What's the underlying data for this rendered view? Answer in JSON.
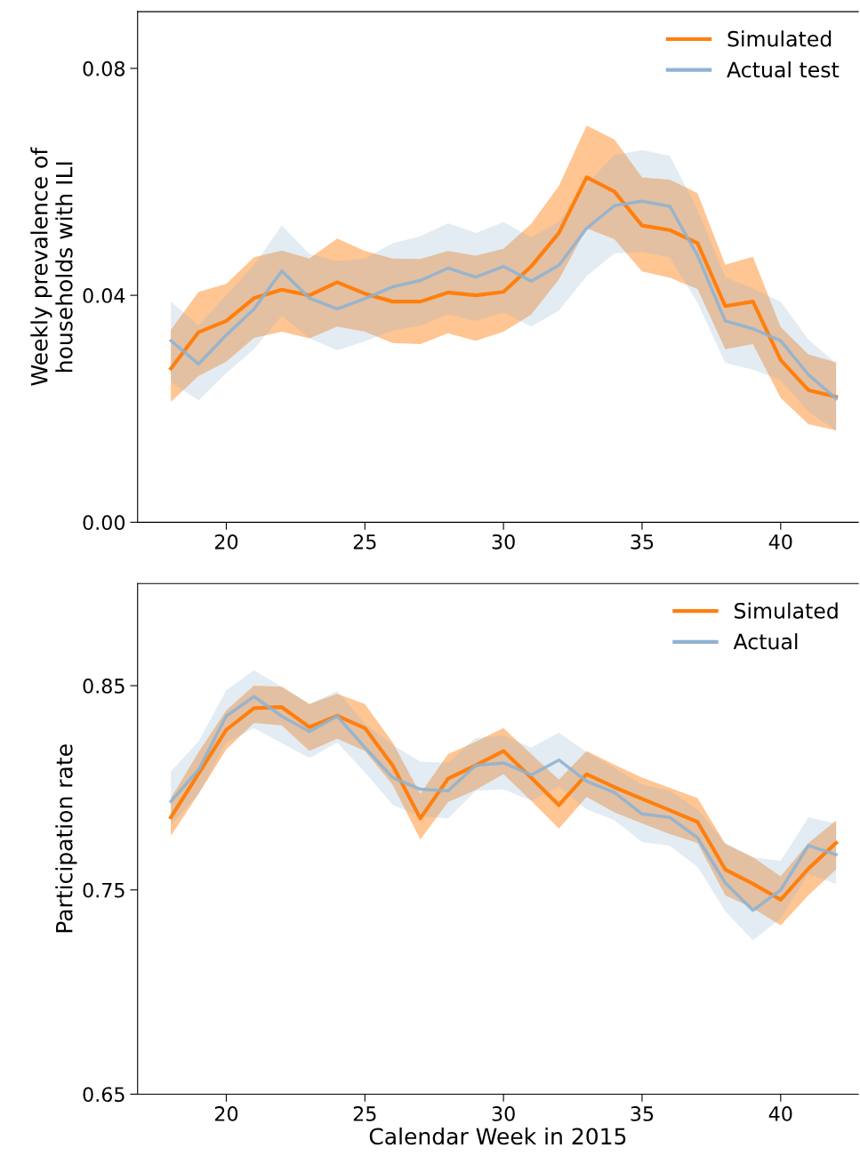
{
  "chart_data": [
    {
      "type": "line",
      "ylabel": "Weekly prevalence of\nhouseholds with ILI",
      "x": [
        18,
        19,
        20,
        21,
        22,
        23,
        24,
        25,
        26,
        27,
        28,
        29,
        30,
        31,
        32,
        33,
        34,
        35,
        36,
        37,
        38,
        39,
        40,
        41,
        42
      ],
      "xlim": [
        16.8,
        42.8
      ],
      "xticks": [
        20,
        25,
        30,
        35,
        40
      ],
      "ylim": [
        0,
        0.09
      ],
      "yticks": [
        {
          "value": 0,
          "label": "0.00"
        },
        0.04,
        0.08
      ],
      "grid": false,
      "legend": "top right",
      "series": [
        {
          "name": "Simulated",
          "color": "#ff7f0e",
          "values": [
            0.0271,
            0.0335,
            0.0355,
            0.0395,
            0.041,
            0.04,
            0.0423,
            0.0403,
            0.0389,
            0.0389,
            0.0405,
            0.04,
            0.0406,
            0.0451,
            0.051,
            0.0608,
            0.0583,
            0.0523,
            0.0515,
            0.0492,
            0.0381,
            0.0389,
            0.0286,
            0.0233,
            0.0221
          ],
          "upper": [
            0.0339,
            0.0406,
            0.042,
            0.0467,
            0.0479,
            0.0465,
            0.05,
            0.0478,
            0.0465,
            0.0464,
            0.0478,
            0.047,
            0.0482,
            0.0526,
            0.0593,
            0.0699,
            0.0675,
            0.0608,
            0.0604,
            0.058,
            0.0454,
            0.0468,
            0.0344,
            0.0296,
            0.0282
          ],
          "lower": [
            0.0212,
            0.0258,
            0.0283,
            0.0325,
            0.0336,
            0.0324,
            0.0345,
            0.0336,
            0.0316,
            0.0314,
            0.0333,
            0.032,
            0.0336,
            0.0366,
            0.0428,
            0.0518,
            0.0499,
            0.0442,
            0.0431,
            0.0411,
            0.0305,
            0.0314,
            0.0219,
            0.0173,
            0.0162
          ]
        },
        {
          "name": "Actual test",
          "color": "#8fb3d1",
          "values": [
            0.032,
            0.0279,
            0.033,
            0.0376,
            0.0443,
            0.0395,
            0.0376,
            0.0394,
            0.0415,
            0.0426,
            0.0448,
            0.0432,
            0.0451,
            0.0425,
            0.0453,
            0.0518,
            0.0558,
            0.0566,
            0.0557,
            0.047,
            0.0355,
            0.0341,
            0.032,
            0.026,
            0.0218
          ],
          "upper": [
            0.0389,
            0.0347,
            0.04,
            0.0453,
            0.0523,
            0.0473,
            0.046,
            0.0465,
            0.0492,
            0.0504,
            0.0527,
            0.051,
            0.0529,
            0.0502,
            0.053,
            0.0596,
            0.0647,
            0.0656,
            0.0646,
            0.0551,
            0.0432,
            0.0412,
            0.0389,
            0.0322,
            0.028
          ],
          "lower": [
            0.0247,
            0.0215,
            0.0263,
            0.0305,
            0.0364,
            0.0324,
            0.0303,
            0.0319,
            0.0338,
            0.0347,
            0.0367,
            0.0355,
            0.037,
            0.0345,
            0.0373,
            0.0434,
            0.0474,
            0.0476,
            0.0467,
            0.0387,
            0.0281,
            0.0269,
            0.0251,
            0.0195,
            0.0162
          ]
        }
      ]
    },
    {
      "type": "line",
      "xlabel": "Calendar Week in 2015",
      "ylabel": "Participation rate",
      "x": [
        18,
        19,
        20,
        21,
        22,
        23,
        24,
        25,
        26,
        27,
        28,
        29,
        30,
        31,
        32,
        33,
        34,
        35,
        36,
        37,
        38,
        39,
        40,
        41,
        42
      ],
      "xlim": [
        16.8,
        42.8
      ],
      "xticks": [
        20,
        25,
        30,
        35,
        40
      ],
      "ylim": [
        0.65,
        0.9
      ],
      "yticks": [
        0.65,
        0.75,
        0.85
      ],
      "grid": false,
      "legend": "top right",
      "series": [
        {
          "name": "Simulated",
          "color": "#ff7f0e",
          "values": [
            0.7855,
            0.807,
            0.8284,
            0.839,
            0.8395,
            0.8297,
            0.8353,
            0.8292,
            0.811,
            0.785,
            0.8045,
            0.811,
            0.818,
            0.805,
            0.7915,
            0.8067,
            0.8003,
            0.7946,
            0.789,
            0.7833,
            0.76,
            0.753,
            0.7452,
            0.7604,
            0.773
          ],
          "upper": [
            0.795,
            0.8175,
            0.838,
            0.85,
            0.8495,
            0.841,
            0.846,
            0.841,
            0.8222,
            0.797,
            0.8165,
            0.8226,
            0.8292,
            0.8165,
            0.804,
            0.818,
            0.8113,
            0.805,
            0.8,
            0.795,
            0.7725,
            0.766,
            0.7566,
            0.773,
            0.784
          ],
          "lower": [
            0.7765,
            0.797,
            0.8188,
            0.8318,
            0.8305,
            0.818,
            0.824,
            0.818,
            0.8015,
            0.7747,
            0.793,
            0.799,
            0.8067,
            0.7937,
            0.78,
            0.7955,
            0.788,
            0.7825,
            0.7773,
            0.773,
            0.7474,
            0.741,
            0.7327,
            0.7474,
            0.76
          ]
        },
        {
          "name": "Actual",
          "color": "#8fb3d1",
          "values": [
            0.7933,
            0.8088,
            0.8351,
            0.8447,
            0.835,
            0.8275,
            0.8351,
            0.8197,
            0.805,
            0.7993,
            0.7985,
            0.811,
            0.8122,
            0.8063,
            0.8136,
            0.8032,
            0.7977,
            0.7872,
            0.7855,
            0.7755,
            0.7535,
            0.74,
            0.75,
            0.7717,
            0.7673
          ],
          "upper": [
            0.808,
            0.8227,
            0.8478,
            0.8575,
            0.8495,
            0.841,
            0.8474,
            0.8314,
            0.821,
            0.8128,
            0.8123,
            0.8244,
            0.8257,
            0.8197,
            0.827,
            0.8175,
            0.8097,
            0.8015,
            0.7985,
            0.7894,
            0.773,
            0.766,
            0.7643,
            0.7855,
            0.7825
          ],
          "lower": [
            0.7816,
            0.797,
            0.8222,
            0.8292,
            0.8218,
            0.8145,
            0.8222,
            0.8076,
            0.7917,
            0.786,
            0.785,
            0.7985,
            0.7993,
            0.7937,
            0.8006,
            0.7894,
            0.7842,
            0.7734,
            0.7717,
            0.7613,
            0.7396,
            0.7253,
            0.7361,
            0.7578,
            0.753
          ]
        }
      ]
    }
  ]
}
